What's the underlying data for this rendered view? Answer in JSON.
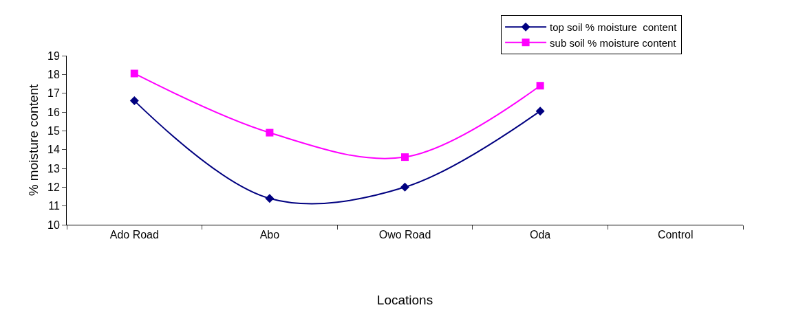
{
  "chart_data": {
    "type": "line",
    "xlabel": "Locations",
    "ylabel": "% moisture content",
    "categories": [
      "Ado Road",
      "Abo",
      "Owo Road",
      "Oda",
      "Control"
    ],
    "series": [
      {
        "name": "top soil % moisture  content",
        "color": "#000080",
        "marker": "diamond",
        "values": [
          16.6,
          11.4,
          12.0,
          16.05,
          null
        ]
      },
      {
        "name": "sub soil % moisture content",
        "color": "#ff00ff",
        "marker": "square",
        "values": [
          18.05,
          14.9,
          13.6,
          17.4,
          null
        ]
      }
    ],
    "ylim": [
      10,
      19
    ],
    "yticks": [
      10,
      11,
      12,
      13,
      14,
      15,
      16,
      17,
      18,
      19
    ],
    "legend": "top right",
    "line_style": "solid"
  }
}
